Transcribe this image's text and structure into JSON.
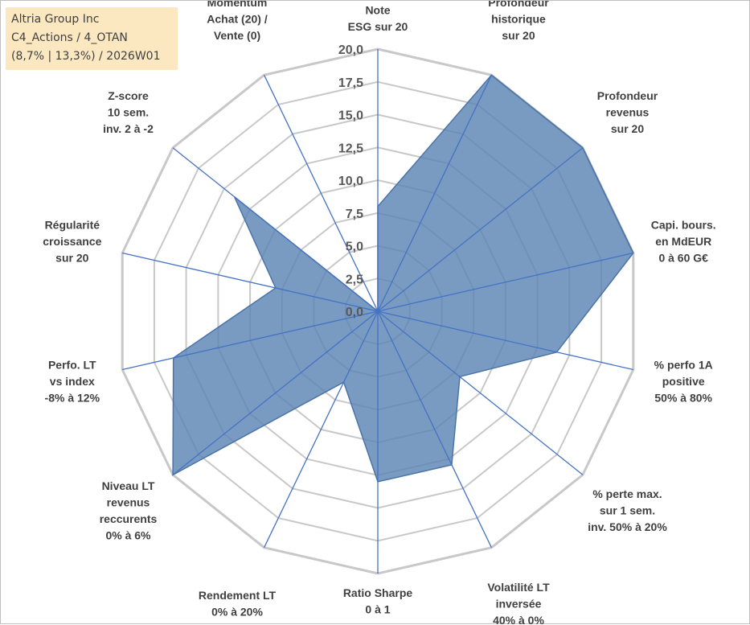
{
  "info": {
    "line1": "Altria Group Inc",
    "line2": "C4_Actions / 4_OTAN",
    "line3": "(8,7% | 13,3%) / 2026W01"
  },
  "colors": {
    "fill": "#5b85b5",
    "spoke": "#4472c4",
    "grid": "#c8c8c8",
    "info_bg": "#fbe8c1"
  },
  "chart_data": {
    "type": "radar",
    "title": "",
    "rmin": 0,
    "rmax": 20,
    "ticks": [
      "0,0",
      "2,5",
      "5,0",
      "7,5",
      "10,0",
      "12,5",
      "15,0",
      "17,5",
      "20,0"
    ],
    "axes": [
      {
        "label": [
          "Note",
          "ESG sur 20"
        ],
        "value": 8.0
      },
      {
        "label": [
          "Profondeur",
          "historique",
          "sur 20"
        ],
        "value": 20.0
      },
      {
        "label": [
          "Profondeur",
          "revenus",
          "sur 20"
        ],
        "value": 20.0
      },
      {
        "label": [
          "Capi. bours.",
          "en MdEUR",
          "0 à 60 G€"
        ],
        "value": 20.0
      },
      {
        "label": [
          "% perfo 1A",
          "positive",
          "50% à 80%"
        ],
        "value": 14.0
      },
      {
        "label": [
          "% perte max.",
          "sur 1 sem.",
          "inv. 50% à 20%"
        ],
        "value": 8.0
      },
      {
        "label": [
          "Volatilité LT",
          "inversée",
          "40% à 0%"
        ],
        "value": 13.0
      },
      {
        "label": [
          "Ratio Sharpe",
          "0 à 1"
        ],
        "value": 13.0
      },
      {
        "label": [
          "Rendement LT",
          "0% à 20%"
        ],
        "value": 6.0
      },
      {
        "label": [
          "Niveau LT",
          "revenus",
          "reccurents",
          "0% à 6%"
        ],
        "value": 20.0
      },
      {
        "label": [
          "Perfo. LT",
          "vs index",
          "-8% à 12%"
        ],
        "value": 16.0
      },
      {
        "label": [
          "Régularité",
          "croissance",
          "sur 20"
        ],
        "value": 8.0
      },
      {
        "label": [
          "Z-score",
          "10 sem.",
          "inv. 2 à -2"
        ],
        "value": 14.0
      },
      {
        "label": [
          "Momentum",
          "Achat (20) /",
          "Vente (0)"
        ],
        "value": 0.0
      }
    ]
  }
}
